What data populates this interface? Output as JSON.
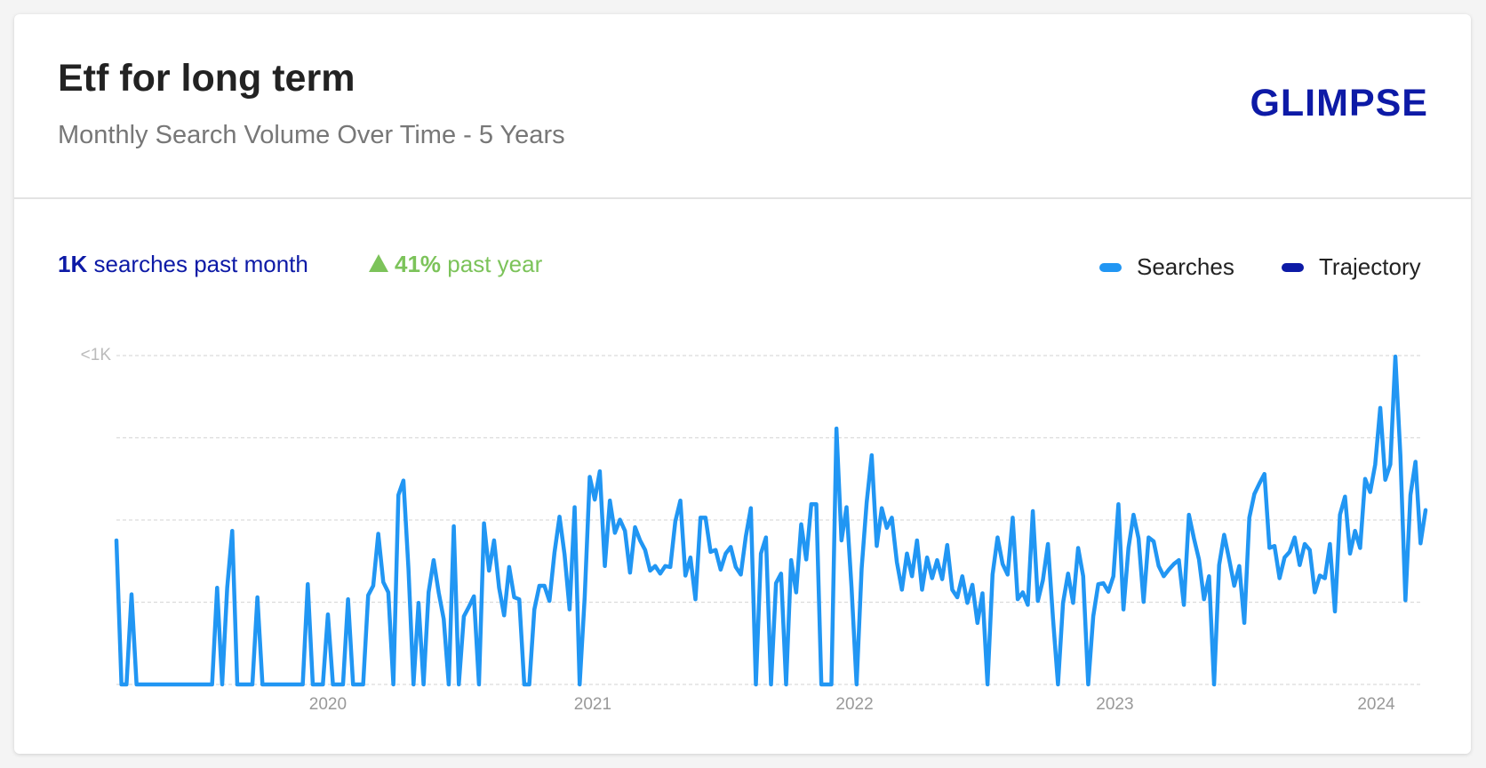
{
  "header": {
    "title": "Etf for long term",
    "subtitle": "Monthly Search Volume Over Time - 5 Years",
    "logo": "GLIMPSE"
  },
  "stats": {
    "searches_value": "1K",
    "searches_label": "searches past month",
    "change_value": "41%",
    "change_label": "past year",
    "change_color": "#7cc35a",
    "searches_color": "#0d1aa6"
  },
  "chart_data": {
    "type": "line",
    "series": [
      {
        "name": "Searches",
        "color": "#2196f3",
        "values": [
          438,
          0,
          0,
          274,
          0,
          0,
          0,
          0,
          0,
          0,
          0,
          0,
          0,
          0,
          0,
          0,
          0,
          0,
          0,
          0,
          294,
          0,
          294,
          467,
          0,
          0,
          0,
          0,
          265,
          0,
          0,
          0,
          0,
          0,
          0,
          0,
          0,
          0,
          305,
          0,
          0,
          0,
          213,
          0,
          0,
          0,
          259,
          0,
          0,
          0,
          271,
          300,
          458,
          311,
          280,
          0,
          576,
          620,
          352,
          0,
          248,
          0,
          280,
          378,
          280,
          199,
          0,
          481,
          0,
          207,
          236,
          268,
          0,
          490,
          346,
          438,
          294,
          210,
          357,
          265,
          259,
          0,
          0,
          228,
          300,
          300,
          254,
          401,
          510,
          395,
          228,
          539,
          0,
          265,
          631,
          562,
          648,
          360,
          559,
          461,
          501,
          467,
          340,
          478,
          438,
          409,
          346,
          360,
          337,
          360,
          357,
          496,
          559,
          331,
          386,
          259,
          507,
          507,
          403,
          409,
          349,
          398,
          418,
          357,
          334,
          450,
          536,
          0,
          398,
          447,
          0,
          308,
          337,
          0,
          378,
          280,
          487,
          380,
          548,
          548,
          0,
          0,
          0,
          778,
          438,
          539,
          294,
          0,
          352,
          553,
          697,
          421,
          536,
          476,
          507,
          372,
          288,
          398,
          329,
          438,
          288,
          386,
          323,
          378,
          320,
          424,
          288,
          265,
          329,
          248,
          303,
          187,
          277,
          0,
          334,
          447,
          366,
          334,
          507,
          259,
          280,
          242,
          527,
          254,
          317,
          427,
          202,
          0,
          248,
          337,
          248,
          415,
          329,
          0,
          207,
          305,
          308,
          282,
          329,
          548,
          228,
          415,
          516,
          444,
          251,
          447,
          435,
          360,
          329,
          349,
          366,
          378,
          242,
          516,
          444,
          380,
          259,
          329,
          0,
          363,
          455,
          380,
          300,
          360,
          187,
          507,
          579,
          611,
          640,
          415,
          421,
          323,
          386,
          403,
          447,
          363,
          427,
          409,
          280,
          331,
          323,
          427,
          222,
          516,
          571,
          398,
          467,
          415,
          625,
          585,
          669,
          841,
          622,
          669,
          997,
          697,
          256,
          576,
          677,
          429,
          530
        ]
      }
    ],
    "legend_items": [
      {
        "name": "Trajectory",
        "color": "#0d1aa6"
      }
    ],
    "xlim": [
      0,
      260
    ],
    "xticks": [
      {
        "value": 42,
        "label": "2020"
      },
      {
        "value": 94.6,
        "label": "2021"
      },
      {
        "value": 146.6,
        "label": "2022"
      },
      {
        "value": 198.3,
        "label": "2023"
      },
      {
        "value": 250.2,
        "label": "2024"
      }
    ],
    "ylim": [
      0,
      1000
    ],
    "yticks": [
      {
        "value": 0,
        "label": null
      },
      {
        "value": 250,
        "label": null
      },
      {
        "value": 500,
        "label": null
      },
      {
        "value": 750,
        "label": null
      },
      {
        "value": 1000,
        "label": "<1K"
      }
    ],
    "grid": true
  }
}
